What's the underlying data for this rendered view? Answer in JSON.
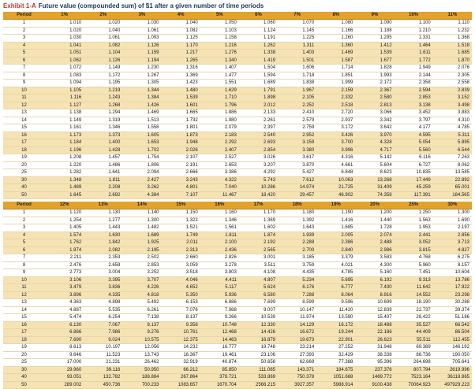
{
  "title": {
    "prefix": "Exhibit 1-A",
    "text": "Future value (compounded sum) of $1 after a given number of time periods"
  },
  "table1": {
    "columns": [
      "Period",
      "1%",
      "2%",
      "3%",
      "4%",
      "5%",
      "6%",
      "7%",
      "8%",
      "9%",
      "10%",
      "11%"
    ],
    "rows": [
      [
        "1",
        "1.010",
        "1.020",
        "1.030",
        "1.040",
        "1.050",
        "1.060",
        "1.070",
        "1.080",
        "1.090",
        "1.100",
        "1.110"
      ],
      [
        "2",
        "1.020",
        "1.040",
        "1.061",
        "1.082",
        "1.103",
        "1.124",
        "1.145",
        "1.166",
        "1.188",
        "1.210",
        "1.232"
      ],
      [
        "3",
        "1.030",
        "1.061",
        "1.093",
        "1.125",
        "1.158",
        "1.191",
        "1.225",
        "1.260",
        "1.295",
        "1.331",
        "1.368"
      ],
      [
        "4",
        "1.041",
        "1.082",
        "1.126",
        "1.170",
        "1.216",
        "1.262",
        "1.311",
        "1.360",
        "1.412",
        "1.464",
        "1.518"
      ],
      [
        "5",
        "1.051",
        "1.104",
        "1.159",
        "1.217",
        "1.276",
        "1.338",
        "1.403",
        "1.469",
        "1.539",
        "1.611",
        "1.685"
      ],
      [
        "6",
        "1.062",
        "1.126",
        "1.194",
        "1.265",
        "1.340",
        "1.419",
        "1.501",
        "1.587",
        "1.677",
        "1.772",
        "1.870"
      ],
      [
        "7",
        "1.072",
        "1.149",
        "1.230",
        "1.316",
        "1.407",
        "1.504",
        "1.606",
        "1.714",
        "1.828",
        "1.949",
        "2.076"
      ],
      [
        "8",
        "1.083",
        "1.172",
        "1.267",
        "1.369",
        "1.477",
        "1.594",
        "1.718",
        "1.851",
        "1.993",
        "2.144",
        "2.305"
      ],
      [
        "9",
        "1.094",
        "1.195",
        "1.305",
        "1.423",
        "1.551",
        "1.689",
        "1.838",
        "1.999",
        "2.172",
        "2.358",
        "2.558"
      ],
      [
        "10",
        "1.105",
        "1.219",
        "1.344",
        "1.480",
        "1.629",
        "1.791",
        "1.967",
        "2.159",
        "2.367",
        "2.594",
        "2.839"
      ],
      [
        "11",
        "1.116",
        "1.243",
        "1.384",
        "1.539",
        "1.710",
        "1.898",
        "2.105",
        "2.332",
        "2.580",
        "2.853",
        "3.152"
      ],
      [
        "12",
        "1.127",
        "1.268",
        "1.426",
        "1.601",
        "1.796",
        "2.012",
        "2.252",
        "2.518",
        "2.813",
        "3.138",
        "3.498"
      ],
      [
        "13",
        "1.138",
        "1.294",
        "1.469",
        "1.665",
        "1.886",
        "2.133",
        "2.410",
        "2.720",
        "3.066",
        "3.452",
        "3.883"
      ],
      [
        "14",
        "1.149",
        "1.319",
        "1.513",
        "1.732",
        "1.980",
        "2.261",
        "2.579",
        "2.937",
        "3.342",
        "3.797",
        "4.310"
      ],
      [
        "15",
        "1.161",
        "1.346",
        "1.558",
        "1.801",
        "2.079",
        "2.397",
        "2.759",
        "3.172",
        "3.642",
        "4.177",
        "4.785"
      ],
      [
        "16",
        "1.173",
        "1.373",
        "1.605",
        "1.873",
        "2.183",
        "2.540",
        "2.952",
        "3.426",
        "3.970",
        "4.595",
        "5.311"
      ],
      [
        "17",
        "1.184",
        "1.400",
        "1.653",
        "1.948",
        "2.292",
        "2.693",
        "3.159",
        "3.700",
        "4.328",
        "5.054",
        "5.895"
      ],
      [
        "18",
        "1.196",
        "1.428",
        "1.702",
        "2.026",
        "2.407",
        "2.854",
        "3.380",
        "3.996",
        "4.717",
        "5.560",
        "6.544"
      ],
      [
        "19",
        "1.208",
        "1.457",
        "1.754",
        "2.107",
        "2.527",
        "3.026",
        "3.617",
        "4.316",
        "5.142",
        "6.116",
        "7.263"
      ],
      [
        "20",
        "1.220",
        "1.486",
        "1.806",
        "2.191",
        "2.653",
        "3.207",
        "3.870",
        "4.661",
        "5.604",
        "6.727",
        "8.062"
      ],
      [
        "25",
        "1.282",
        "1.641",
        "2.094",
        "2.666",
        "3.386",
        "4.292",
        "5.427",
        "6.848",
        "8.623",
        "10.835",
        "13.585"
      ],
      [
        "30",
        "1.348",
        "1.811",
        "2.427",
        "3.243",
        "4.322",
        "5.743",
        "7.612",
        "10.063",
        "13.268",
        "17.449",
        "22.892"
      ],
      [
        "40",
        "1.489",
        "2.208",
        "3.262",
        "4.801",
        "7.040",
        "10.286",
        "14.974",
        "21.725",
        "31.409",
        "45.259",
        "65.001"
      ],
      [
        "50",
        "1.645",
        "2.692",
        "4.384",
        "7.107",
        "11.467",
        "18.420",
        "29.457",
        "46.902",
        "74.358",
        "117.391",
        "184.565"
      ]
    ]
  },
  "table2": {
    "columns": [
      "Period",
      "12%",
      "13%",
      "14%",
      "15%",
      "16%",
      "17%",
      "18%",
      "19%",
      "20%",
      "25%",
      "30%"
    ],
    "rows": [
      [
        "1",
        "1.120",
        "1.130",
        "1.140",
        "1.150",
        "1.160",
        "1.170",
        "1.180",
        "1.190",
        "1.200",
        "1.250",
        "1.300"
      ],
      [
        "2",
        "1.254",
        "1.277",
        "1.300",
        "1.323",
        "1.346",
        "1.369",
        "1.392",
        "1.416",
        "1.440",
        "1.563",
        "1.690"
      ],
      [
        "3",
        "1.405",
        "1.443",
        "1.482",
        "1.521",
        "1.561",
        "1.602",
        "1.643",
        "1.685",
        "1.728",
        "1.953",
        "2.197"
      ],
      [
        "4",
        "1.574",
        "1.630",
        "1.689",
        "1.749",
        "1.811",
        "1.874",
        "1.939",
        "2.005",
        "2.074",
        "2.441",
        "2.856"
      ],
      [
        "5",
        "1.762",
        "1.842",
        "1.925",
        "2.011",
        "2.100",
        "2.192",
        "2.288",
        "2.386",
        "2.488",
        "3.052",
        "3.713"
      ],
      [
        "6",
        "1.974",
        "2.082",
        "2.195",
        "2.313",
        "2.436",
        "2.565",
        "2.700",
        "2.840",
        "2.986",
        "3.815",
        "4.827"
      ],
      [
        "7",
        "2.211",
        "2.353",
        "2.502",
        "2.660",
        "2.826",
        "3.001",
        "3.185",
        "3.379",
        "3.583",
        "4.768",
        "6.275"
      ],
      [
        "8",
        "2.476",
        "2.658",
        "2.853",
        "3.059",
        "3.278",
        "3.511",
        "3.759",
        "4.021",
        "4.300",
        "5.960",
        "8.157"
      ],
      [
        "9",
        "2.773",
        "3.004",
        "3.252",
        "3.518",
        "3.803",
        "4.108",
        "4.435",
        "4.785",
        "5.160",
        "7.451",
        "10.604"
      ],
      [
        "10",
        "3.106",
        "3.395",
        "3.707",
        "4.046",
        "4.411",
        "4.807",
        "5.234",
        "5.695",
        "6.192",
        "9.313",
        "13.786"
      ],
      [
        "11",
        "3.479",
        "3.836",
        "4.226",
        "4.652",
        "5.117",
        "5.624",
        "6.176",
        "6.777",
        "7.430",
        "11.642",
        "17.922"
      ],
      [
        "12",
        "3.896",
        "4.335",
        "4.818",
        "5.350",
        "5.936",
        "6.580",
        "7.288",
        "8.064",
        "8.916",
        "14.552",
        "23.298"
      ],
      [
        "13",
        "4.363",
        "4.898",
        "5.492",
        "6.153",
        "6.886",
        "7.699",
        "8.599",
        "9.596",
        "10.699",
        "18.190",
        "30.288"
      ],
      [
        "14",
        "4.887",
        "5.535",
        "6.261",
        "7.076",
        "7.988",
        "9.007",
        "10.147",
        "11.420",
        "12.839",
        "22.737",
        "39.374"
      ],
      [
        "15",
        "5.474",
        "6.254",
        "7.138",
        "8.137",
        "9.266",
        "10.539",
        "11.974",
        "13.590",
        "15.407",
        "28.422",
        "51.186"
      ],
      [
        "16",
        "6.130",
        "7.067",
        "8.137",
        "9.358",
        "10.748",
        "12.330",
        "14.129",
        "16.172",
        "18.488",
        "35.527",
        "66.542"
      ],
      [
        "17",
        "6.866",
        "7.986",
        "9.276",
        "10.761",
        "12.468",
        "14.426",
        "16.672",
        "19.244",
        "22.186",
        "44.409",
        "86.504"
      ],
      [
        "18",
        "7.690",
        "9.024",
        "10.575",
        "12.375",
        "14.463",
        "16.879",
        "19.673",
        "22.901",
        "26.623",
        "55.511",
        "112.455"
      ],
      [
        "19",
        "8.613",
        "10.197",
        "12.056",
        "14.232",
        "16.777",
        "19.748",
        "23.214",
        "27.252",
        "31.948",
        "69.389",
        "146.192"
      ],
      [
        "20",
        "9.646",
        "11.523",
        "13.743",
        "16.367",
        "19.461",
        "23.106",
        "27.393",
        "32.429",
        "38.338",
        "86.736",
        "190.050"
      ],
      [
        "25",
        "17.000",
        "21.231",
        "26.462",
        "32.919",
        "40.874",
        "50.658",
        "62.669",
        "77.388",
        "95.396",
        "264.698",
        "705.641"
      ],
      [
        "30",
        "29.960",
        "39.116",
        "50.950",
        "66.212",
        "85.850",
        "111.065",
        "143.371",
        "184.675",
        "237.376",
        "807.794",
        "2619.996"
      ],
      [
        "40",
        "93.051",
        "132.782",
        "188.884",
        "267.864",
        "378.721",
        "533.869",
        "750.378",
        "1051.668",
        "1469.772",
        "7523.164",
        "36118.865"
      ],
      [
        "50",
        "289.002",
        "450.736",
        "700.233",
        "1083.657",
        "1670.704",
        "2566.215",
        "3927.357",
        "5988.914",
        "9100.438",
        "70064.923",
        "497929.223"
      ]
    ]
  },
  "colors": {
    "header": "#e3a32a",
    "stripe": "#f6e3b4",
    "title_prefix": "#c0392b",
    "title_text": "#1f3a66"
  }
}
